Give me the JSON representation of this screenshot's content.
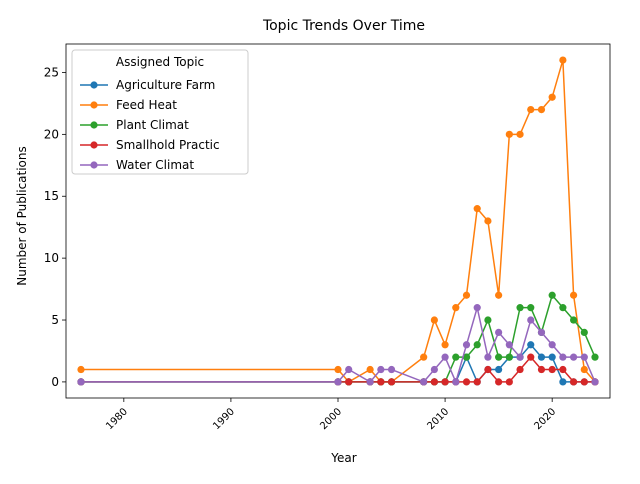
{
  "chart_data": {
    "type": "line",
    "title": "Topic Trends Over Time",
    "xlabel": "Year",
    "ylabel": "Number of Publications",
    "xlim": [
      1974.6,
      2025.4
    ],
    "ylim": [
      -1.3,
      27.3
    ],
    "xticks": [
      1980,
      1990,
      2000,
      2010,
      2020
    ],
    "yticks": [
      0,
      5,
      10,
      15,
      20,
      25
    ],
    "grid": false,
    "legend": {
      "title": "Assigned Topic",
      "position": "top-left"
    },
    "x": [
      1976,
      2000,
      2001,
      2003,
      2004,
      2005,
      2008,
      2009,
      2010,
      2011,
      2012,
      2013,
      2014,
      2015,
      2016,
      2017,
      2018,
      2019,
      2020,
      2021,
      2022,
      2023,
      2024
    ],
    "series": [
      {
        "name": "Agriculture Farm",
        "color": "#1f77b4",
        "values": [
          0,
          0,
          0,
          0,
          0,
          0,
          0,
          0,
          0,
          0,
          2,
          0,
          1,
          1,
          2,
          2,
          3,
          2,
          2,
          0,
          0,
          0,
          0
        ]
      },
      {
        "name": "Feed Heat",
        "color": "#ff7f0e",
        "values": [
          1,
          1,
          0,
          1,
          0,
          0,
          2,
          5,
          3,
          6,
          7,
          14,
          13,
          7,
          20,
          20,
          22,
          22,
          23,
          26,
          7,
          1,
          0
        ]
      },
      {
        "name": "Plant Climat",
        "color": "#2ca02c",
        "values": [
          0,
          0,
          0,
          0,
          0,
          0,
          0,
          0,
          0,
          2,
          2,
          3,
          5,
          2,
          2,
          6,
          6,
          4,
          7,
          6,
          5,
          4,
          2
        ]
      },
      {
        "name": "Smallhold Practic",
        "color": "#d62728",
        "values": [
          0,
          0,
          0,
          0,
          0,
          0,
          0,
          0,
          0,
          0,
          0,
          0,
          1,
          0,
          0,
          1,
          2,
          1,
          1,
          1,
          0,
          0,
          0
        ]
      },
      {
        "name": "Water Climat",
        "color": "#9467bd",
        "values": [
          0,
          0,
          1,
          0,
          1,
          1,
          0,
          1,
          2,
          0,
          3,
          6,
          2,
          4,
          3,
          2,
          5,
          4,
          3,
          2,
          2,
          2,
          0
        ]
      }
    ]
  }
}
